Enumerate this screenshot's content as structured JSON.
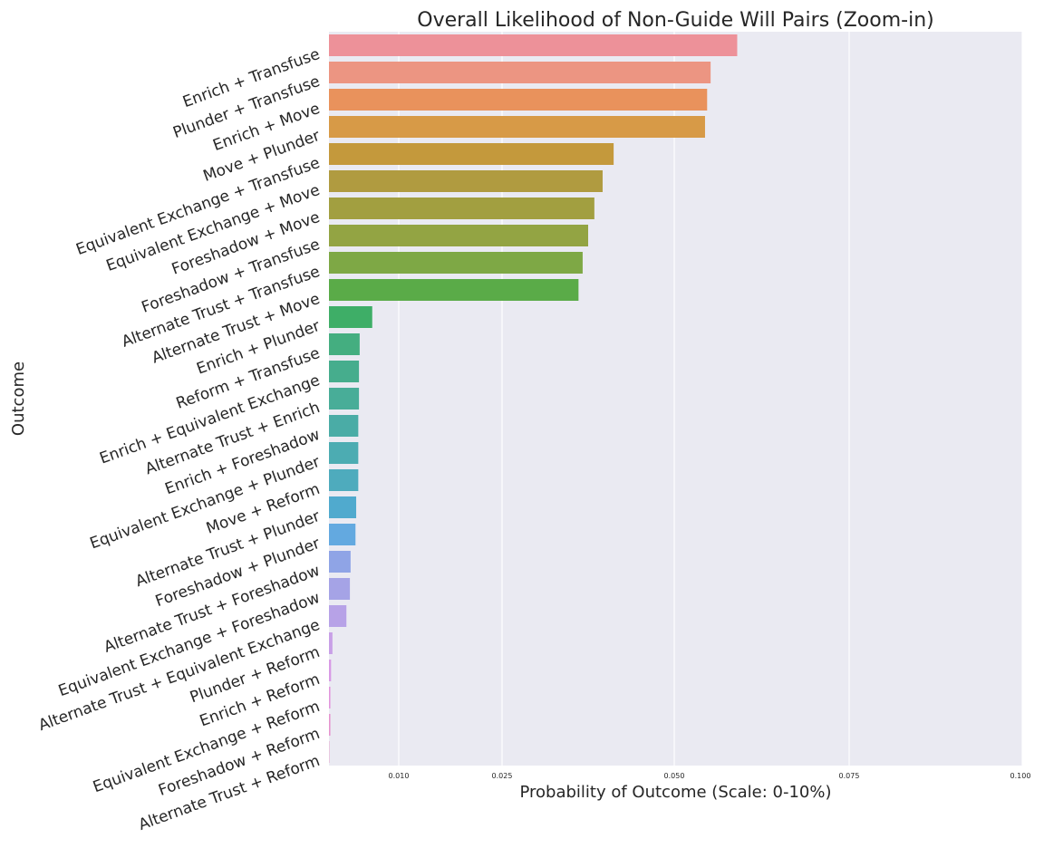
{
  "chart_data": {
    "type": "bar",
    "orientation": "horizontal",
    "title": "Overall Likelihood of Non-Guide Will Pairs (Zoom-in)",
    "xlabel": "Probability of Outcome (Scale: 0-10%)",
    "ylabel": "Outcome",
    "xlim": [
      0.0,
      0.1
    ],
    "xticks": [
      0.01,
      0.025,
      0.05,
      0.075,
      0.1
    ],
    "xtick_labels": [
      "0.010",
      "0.025",
      "0.050",
      "0.075",
      "0.100"
    ],
    "grid": true,
    "background": "#eaeaf2",
    "categories": [
      "Enrich + Transfuse",
      "Plunder + Transfuse",
      "Enrich + Move",
      "Move + Plunder",
      "Equivalent Exchange + Transfuse",
      "Equivalent Exchange + Move",
      "Foreshadow + Move",
      "Foreshadow + Transfuse",
      "Alternate Trust + Transfuse",
      "Alternate Trust + Move",
      "Enrich + Plunder",
      "Reform + Transfuse",
      "Enrich + Equivalent Exchange",
      "Alternate Trust + Enrich",
      "Enrich + Foreshadow",
      "Equivalent Exchange + Plunder",
      "Move + Reform",
      "Alternate Trust + Plunder",
      "Foreshadow + Plunder",
      "Alternate Trust + Foreshadow",
      "Equivalent Exchange + Foreshadow",
      "Alternate Trust + Equivalent Exchange",
      "Plunder + Reform",
      "Enrich + Reform",
      "Equivalent Exchange + Reform",
      "Foreshadow + Reform",
      "Alternate Trust + Reform"
    ],
    "values": [
      0.059,
      0.0552,
      0.0547,
      0.0544,
      0.0412,
      0.0396,
      0.0384,
      0.0375,
      0.0367,
      0.0361,
      0.0062,
      0.0044,
      0.0043,
      0.0043,
      0.0042,
      0.0042,
      0.0042,
      0.0039,
      0.0038,
      0.0031,
      0.003,
      0.0025,
      0.0005,
      0.0003,
      0.0002,
      0.0002,
      5e-05
    ],
    "colors": [
      "#ed9199",
      "#ec9582",
      "#e9925c",
      "#d79a47",
      "#c4993c",
      "#b09b40",
      "#a29f40",
      "#93a443",
      "#7ea845",
      "#5aab48",
      "#3eae67",
      "#44ae80",
      "#46ad8d",
      "#48ad98",
      "#4aaca6",
      "#4cacb2",
      "#4eabbd",
      "#50aace",
      "#63a9e0",
      "#8fa4e6",
      "#a5a3e6",
      "#b7a2e7",
      "#c89fe7",
      "#d89ae5",
      "#e295dc",
      "#e693cf",
      "#e891c2"
    ]
  }
}
